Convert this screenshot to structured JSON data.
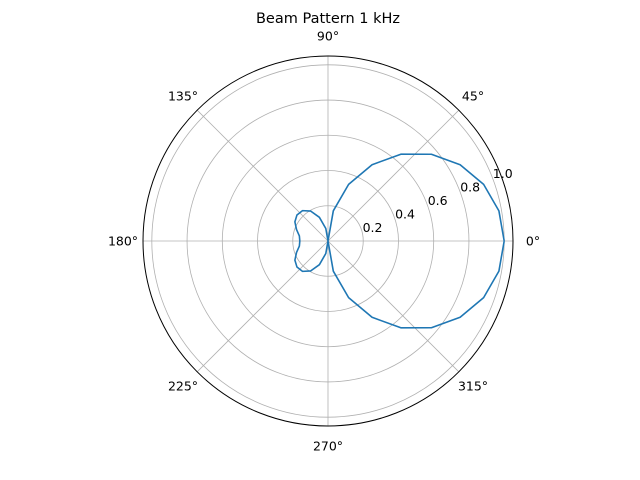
{
  "chart_data": {
    "type": "polar-line",
    "title": "Beam Pattern 1 kHz",
    "theta_tick_labels": [
      "0°",
      "45°",
      "90°",
      "135°",
      "180°",
      "225°",
      "270°",
      "315°"
    ],
    "theta_ticks_deg": [
      0,
      45,
      90,
      135,
      180,
      225,
      270,
      315
    ],
    "r_tick_labels": [
      "0.2",
      "0.4",
      "0.6",
      "0.8",
      "1.0"
    ],
    "r_ticks": [
      0.2,
      0.4,
      0.6,
      0.8,
      1.0
    ],
    "rlim": [
      0,
      1.05
    ],
    "r_label_angle_deg": 22.5,
    "grid": true,
    "series": [
      {
        "color": "#1f77b4",
        "theta_deg": [
          0,
          10,
          20,
          30,
          40,
          50,
          60,
          70,
          80,
          90,
          100,
          110,
          120,
          130,
          140,
          150,
          160,
          170,
          180,
          190,
          200,
          210,
          220,
          230,
          240,
          250,
          260,
          270,
          280,
          290,
          300,
          310,
          320,
          330,
          340,
          350,
          360
        ],
        "r": [
          1.0,
          0.985,
          0.94,
          0.866,
          0.766,
          0.643,
          0.5,
          0.342,
          0.174,
          0.0,
          0.072,
          0.143,
          0.196,
          0.225,
          0.23,
          0.217,
          0.19,
          0.165,
          0.16,
          0.165,
          0.19,
          0.217,
          0.23,
          0.225,
          0.196,
          0.143,
          0.072,
          0.0,
          0.174,
          0.342,
          0.5,
          0.643,
          0.766,
          0.866,
          0.94,
          0.985,
          1.0
        ]
      }
    ]
  }
}
